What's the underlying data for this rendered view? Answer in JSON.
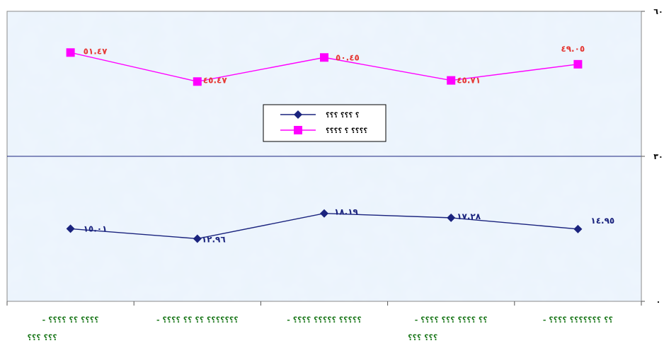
{
  "chart_data": {
    "type": "line",
    "title": "",
    "xlabel": "",
    "ylabel": "",
    "ylim": [
      0,
      60
    ],
    "y_ticks": [
      {
        "value": 60,
        "label": "٦٠"
      },
      {
        "value": 30,
        "label": "٣٠"
      },
      {
        "value": 0,
        "label": "٠"
      }
    ],
    "grid": true,
    "legend_position": "center",
    "categories": [
      [
        "- ؟؟؟؟ ؟؟ ؟؟؟؟",
        "؟؟؟ ؟؟؟"
      ],
      [
        "- ؟؟؟؟؟؟؟ ؟؟ ؟؟ ؟؟؟؟"
      ],
      [
        "- ؟؟؟؟؟ ؟؟؟؟؟ ؟؟؟؟"
      ],
      [
        "- ؟؟ ؟؟؟؟ ؟؟؟ ؟؟؟؟",
        "؟؟؟ ؟؟؟"
      ],
      [
        "- ؟؟ ؟؟؟؟؟؟؟ ؟؟؟؟"
      ]
    ],
    "series": [
      {
        "name": "؟ ؟؟؟ ؟؟؟",
        "color": "#1a237e",
        "marker": "diamond",
        "values": [
          15.01,
          12.96,
          18.19,
          17.28,
          14.95
        ],
        "labels": [
          "١٥.٠١",
          "١٢.٩٦",
          "١٨.١٩",
          "١٧.٢٨",
          "١٤.٩٥"
        ]
      },
      {
        "name": "؟؟؟؟ ؟ ؟؟؟؟",
        "color": "#ff00ff",
        "marker": "square",
        "values": [
          51.47,
          45.47,
          50.45,
          45.71,
          49.05
        ],
        "labels": [
          "٥١.٤٧",
          "٤٥.٤٧",
          "٥٠.٤٥",
          "٤٥.٧١",
          "٤٩.٠٥"
        ]
      }
    ]
  }
}
